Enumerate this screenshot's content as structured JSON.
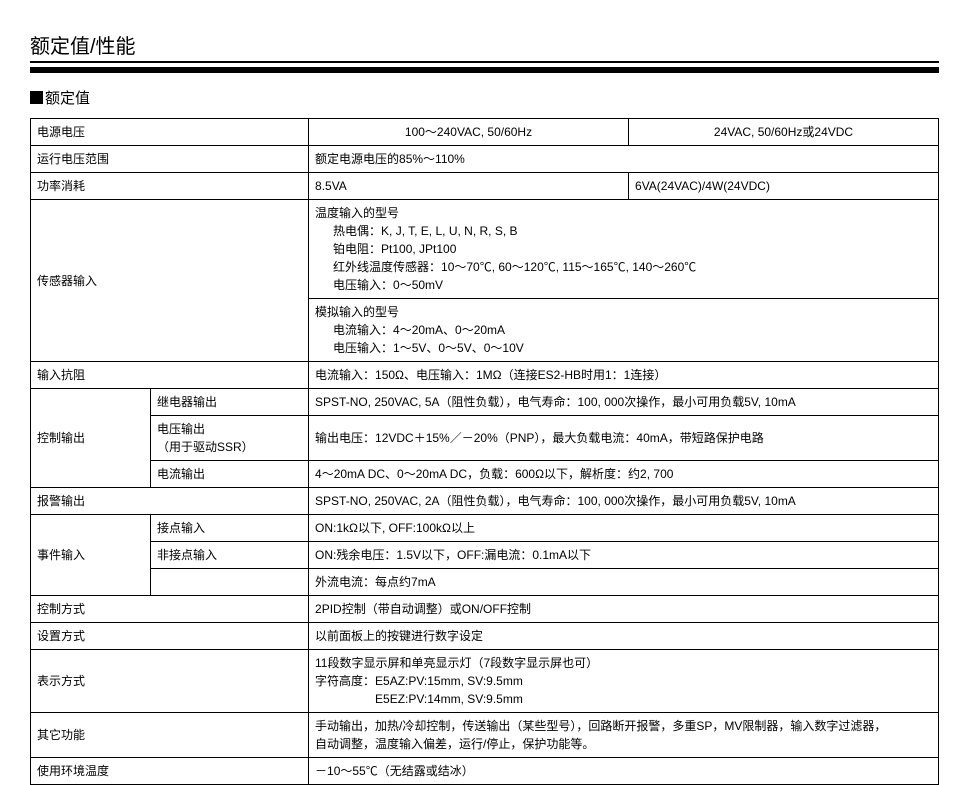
{
  "heading": "额定值/性能",
  "subheading": "额定值",
  "table": {
    "cols": {
      "c1_width": 120,
      "c2_width": 158,
      "c3_width": 320
    },
    "border_color": "#000000",
    "font_size": 12,
    "rows": {
      "r1": {
        "label": "电源电压",
        "v1": "100～240VAC, 50/60Hz",
        "v2": "24VAC, 50/60Hz或24VDC"
      },
      "r2": {
        "label": "运行电压范围",
        "v": "额定电源电压的85%～110%"
      },
      "r3": {
        "label": "功率消耗",
        "v1": "8.5VA",
        "v2": "6VA(24VAC)/4W(24VDC)"
      },
      "sensor": {
        "label": "传感器输入",
        "block1_l1": "温度输入的型号",
        "block1_l2": "热电偶：K, J, T, E, L, U, N, R, S, B",
        "block1_l3": "铂电阻：Pt100, JPt100",
        "block1_l4": "红外线温度传感器：10～70℃, 60～120℃, 115～165℃, 140～260℃",
        "block1_l5": "电压输入：0～50mV",
        "block2_l1": "模拟输入的型号",
        "block2_l2": "电流输入：4～20mA、0～20mA",
        "block2_l3": "电压输入：1～5V、0～5V、0～10V"
      },
      "impedance": {
        "label": "输入抗阻",
        "v": "电流输入：150Ω、电压输入：1MΩ（连接ES2-HB时用1：1连接）"
      },
      "ctrlout": {
        "label": "控制输出",
        "relay_label": "继电器输出",
        "relay_v": "SPST-NO, 250VAC, 5A（阻性负载），电气寿命：100, 000次操作，最小可用负载5V, 10mA",
        "volt_label": "电压输出",
        "volt_sub": "（用于驱动SSR）",
        "volt_v": "输出电压：12VDC＋15%／－20%（PNP），最大负载电流：40mA，带短路保护电路",
        "curr_label": "电流输出",
        "curr_v": "4～20mA DC、0～20mA DC，负载：600Ω以下，解析度：约2, 700"
      },
      "alarm": {
        "label": "报警输出",
        "v": "SPST-NO, 250VAC, 2A（阻性负载），电气寿命：100, 000次操作，最小可用负载5V, 10mA"
      },
      "eventin": {
        "label": "事件输入",
        "contact_label": "接点输入",
        "contact_v": "ON:1kΩ以下, OFF:100kΩ以上",
        "noncontact_label": "非接点输入",
        "noncontact_v": "ON:残余电压：1.5V以下，OFF:漏电流：0.1mA以下",
        "ext_v": "外流电流：每点约7mA"
      },
      "ctrlmethod": {
        "label": "控制方式",
        "v": "2PID控制（带自动调整）或ON/OFF控制"
      },
      "setmethod": {
        "label": "设置方式",
        "v": "以前面板上的按键进行数字设定"
      },
      "display": {
        "label": "表示方式",
        "l1": "11段数字显示屏和单亮显示灯（7段数字显示屏也可）",
        "l2": "字符高度：E5AZ:PV:15mm, SV:9.5mm",
        "l3": "E5EZ:PV:14mm, SV:9.5mm"
      },
      "other": {
        "label": "其它功能",
        "l1": "手动输出，加热/冷却控制，传送输出（某些型号），回路断开报警，多重SP，MV限制器，输入数字过滤器，",
        "l2": "自动调整，温度输入偏差，运行/停止，保护功能等。"
      },
      "envtemp": {
        "label": "使用环境温度",
        "v": "－10～55℃（无结露或结冰）"
      }
    }
  }
}
